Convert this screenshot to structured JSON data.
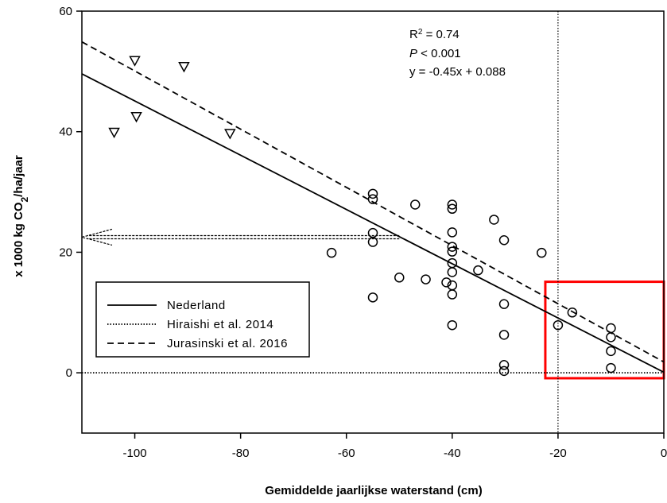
{
  "chart_data": {
    "type": "scatter",
    "x_label": "Gemiddelde jaarlijkse waterstand (cm)",
    "y_label": [
      "x 1000 kg CO",
      "2",
      "/ha/jaar"
    ],
    "annotations": [
      [
        "R",
        "2",
        " = 0.74"
      ],
      [
        "P",
        " < 0.001"
      ],
      [
        "y = -0.45x + 0.088"
      ]
    ],
    "xlim": [
      -110,
      0
    ],
    "ylim": [
      -10,
      60
    ],
    "xticks": [
      -100,
      -80,
      -60,
      -40,
      -20,
      0
    ],
    "yticks": [
      0,
      20,
      40,
      60
    ],
    "series": [
      {
        "name": "Nederland",
        "style": "solid",
        "color": "#000000",
        "x": [
          -110,
          0
        ],
        "values": [
          49.6,
          0.088
        ]
      },
      {
        "name": "Hiraishi et al. 2014",
        "style": "dotted",
        "color": "#000000",
        "x": [
          -110,
          0
        ],
        "values": [
          0,
          0
        ]
      },
      {
        "name": "Jurasinski et al. 2016",
        "style": "dashed",
        "color": "#000000",
        "x": [
          -110,
          0
        ],
        "values": [
          54.9,
          1.8
        ]
      }
    ],
    "points": [
      {
        "marker": "triangle",
        "color": "#000000",
        "x": [
          -103.9,
          -100,
          -99.7,
          -90.7,
          -82
        ],
        "values": [
          39.9,
          51.8,
          42.5,
          50.8,
          39.7
        ]
      },
      {
        "marker": "circle",
        "color": "#000000",
        "x": [
          -55,
          -55,
          -55,
          -55,
          -55,
          -62.8,
          -50,
          -47,
          -45,
          -40,
          -40,
          -40,
          -40,
          -40,
          -40,
          -40,
          -40,
          -40,
          -40,
          -41.1,
          -35.1,
          -32.1,
          -30.2,
          -30.2,
          -30.2,
          -30.2,
          -30.2,
          -23.1,
          -20,
          -17.3,
          -10,
          -10,
          -10,
          -10
        ],
        "values": [
          29.7,
          28.8,
          23.2,
          21.7,
          12.5,
          19.9,
          15.8,
          27.9,
          15.5,
          27.9,
          27.2,
          23.3,
          20.9,
          20.1,
          18.2,
          16.7,
          14.5,
          13,
          7.9,
          15,
          17,
          25.4,
          22,
          11.4,
          6.3,
          1.3,
          0.3,
          19.9,
          7.9,
          10,
          7.4,
          5.9,
          3.6,
          0.8
        ]
      }
    ],
    "vline": {
      "x": -20,
      "style": "dotted"
    },
    "arrow": {
      "x": [
        -50,
        -110
      ],
      "y": 22.5
    },
    "highlight": {
      "xlim": [
        -22.4,
        0
      ],
      "ylim": [
        -0.9,
        15.1
      ],
      "color": "#ff0000"
    }
  }
}
